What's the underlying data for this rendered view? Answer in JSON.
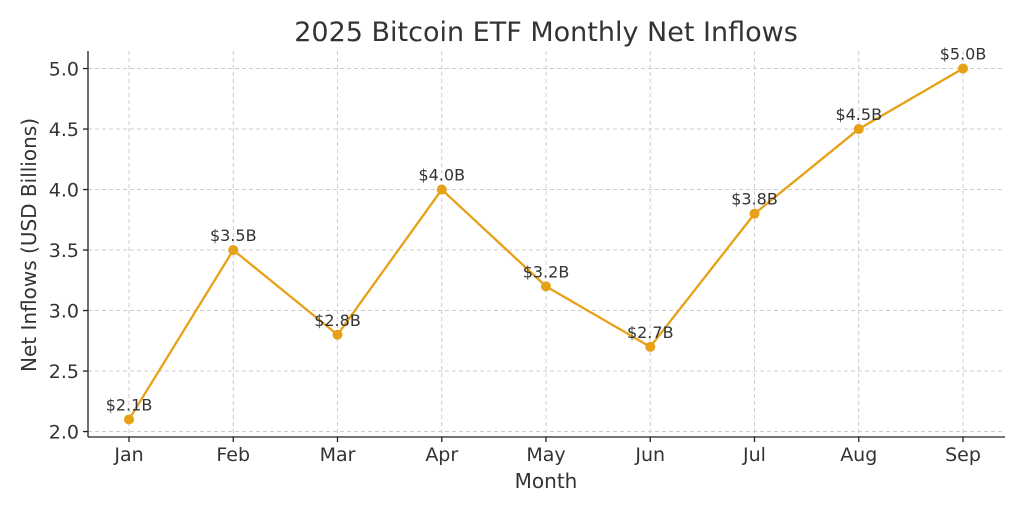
{
  "chart_data": {
    "type": "line",
    "title": "2025 Bitcoin ETF Monthly Net Inflows",
    "xlabel": "Month",
    "ylabel": "Net Inflows (USD Billions)",
    "categories": [
      "Jan",
      "Feb",
      "Mar",
      "Apr",
      "May",
      "Jun",
      "Jul",
      "Aug",
      "Sep"
    ],
    "series": [
      {
        "values": [
          2.1,
          3.5,
          2.8,
          4.0,
          3.2,
          2.7,
          3.8,
          4.5,
          5.0
        ],
        "labels": [
          "$2.1B",
          "$3.5B",
          "$2.8B",
          "$4.0B",
          "$3.2B",
          "$2.7B",
          "$3.8B",
          "$4.5B",
          "$5.0B"
        ]
      }
    ],
    "ylim": [
      1.955,
      5.145
    ],
    "yticks": [
      "2.0",
      "2.5",
      "3.0",
      "3.5",
      "4.0",
      "4.5",
      "5.0"
    ],
    "grid": true,
    "color": "#E6A117"
  }
}
